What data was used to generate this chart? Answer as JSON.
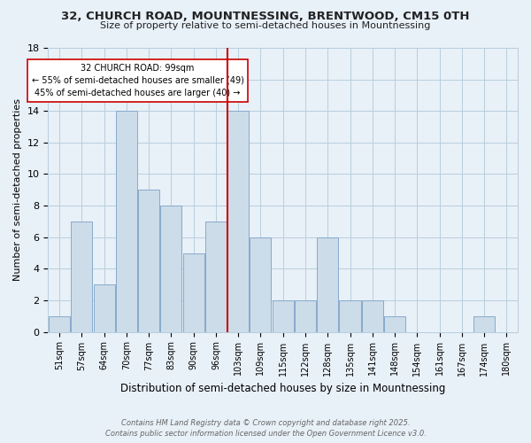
{
  "title1": "32, CHURCH ROAD, MOUNTNESSING, BRENTWOOD, CM15 0TH",
  "title2": "Size of property relative to semi-detached houses in Mountnessing",
  "xlabel": "Distribution of semi-detached houses by size in Mountnessing",
  "ylabel": "Number of semi-detached properties",
  "categories": [
    "51sqm",
    "57sqm",
    "64sqm",
    "70sqm",
    "77sqm",
    "83sqm",
    "90sqm",
    "96sqm",
    "103sqm",
    "109sqm",
    "115sqm",
    "122sqm",
    "128sqm",
    "135sqm",
    "141sqm",
    "148sqm",
    "154sqm",
    "161sqm",
    "167sqm",
    "174sqm",
    "180sqm"
  ],
  "values": [
    1,
    7,
    3,
    14,
    9,
    8,
    5,
    7,
    14,
    6,
    2,
    2,
    6,
    2,
    2,
    1,
    0,
    0,
    0,
    1,
    0
  ],
  "bar_color": "#ccdce8",
  "bar_edge_color": "#88aacc",
  "red_line_index": 8,
  "annotation_title": "32 CHURCH ROAD: 99sqm",
  "annotation_line1": "← 55% of semi-detached houses are smaller (49)",
  "annotation_line2": "45% of semi-detached houses are larger (40) →",
  "ylim": [
    0,
    18
  ],
  "yticks": [
    0,
    2,
    4,
    6,
    8,
    10,
    12,
    14,
    16,
    18
  ],
  "red_line_color": "#cc0000",
  "footnote1": "Contains HM Land Registry data © Crown copyright and database right 2025.",
  "footnote2": "Contains public sector information licensed under the Open Government Licence v3.0.",
  "bg_color": "#e8f0f8",
  "grid_color": "#b8cedd"
}
